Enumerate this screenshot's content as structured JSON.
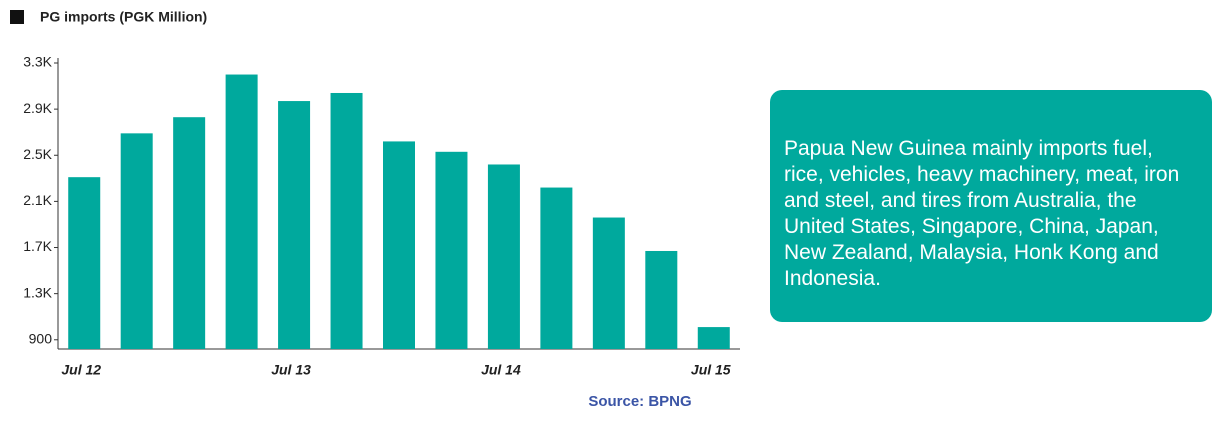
{
  "chart_data": {
    "type": "bar",
    "title": "PG imports (PGK Million)",
    "categories": [
      "Jul 12",
      null,
      null,
      null,
      "Jul 13",
      null,
      null,
      null,
      "Jul 14",
      null,
      null,
      null,
      "Jul 15"
    ],
    "values": [
      2310,
      2690,
      2830,
      3200,
      2970,
      3040,
      2620,
      2530,
      2420,
      2220,
      1960,
      1670,
      1010
    ],
    "color": "#00a99d",
    "ylim": [
      820,
      3300
    ],
    "yticks": [
      900,
      {
        "value": 1300,
        "label": "1.3K"
      },
      {
        "value": 1700,
        "label": "1.7K"
      },
      {
        "value": 2100,
        "label": "2.1K"
      },
      {
        "value": 2500,
        "label": "2.5K"
      },
      {
        "value": 2900,
        "label": "2.9K"
      },
      {
        "value": 3300,
        "label": "3.3K"
      }
    ],
    "annotation": "Papua New Guinea mainly imports fuel, rice, vehicles, heavy machinery, meat, iron and steel, and tires from Australia, the United States, Singapore, China, Japan, New Zealand, Malaysia, Honk Kong and Indonesia.",
    "source": "Source: BPNG"
  }
}
